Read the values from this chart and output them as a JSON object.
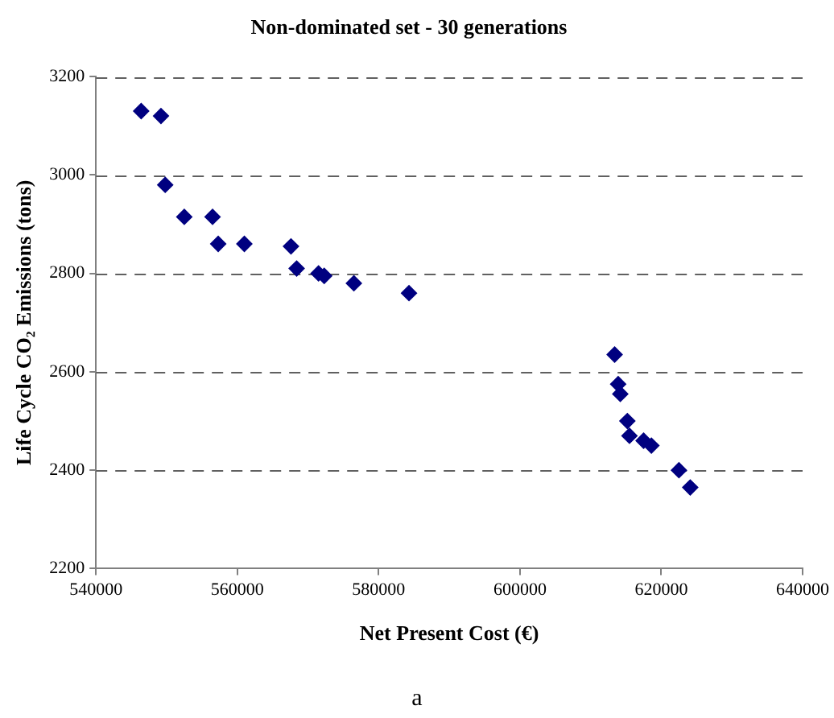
{
  "chart_data": {
    "type": "scatter",
    "title": "Non-dominated set - 30 generations",
    "xlabel": "Net Present Cost (€)",
    "ylabel": "Life Cycle CO₂ Emissions (tons)",
    "annotations": [
      "a"
    ],
    "series": [
      {
        "color": "#000080",
        "x": [
          546400,
          549200,
          549800,
          552500,
          556500,
          557300,
          561000,
          567600,
          568400,
          571500,
          572300,
          576500,
          584300,
          613400,
          613900,
          614200,
          615200,
          615500,
          617500,
          618600,
          622500,
          624100
        ],
        "values": [
          3130,
          3120,
          2980,
          2915,
          2915,
          2860,
          2860,
          2855,
          2810,
          2800,
          2795,
          2780,
          2760,
          2635,
          2575,
          2555,
          2500,
          2470,
          2460,
          2450,
          2400,
          2365
        ]
      }
    ],
    "xlim": [
      540000,
      640000
    ],
    "xticks": [
      540000,
      560000,
      580000,
      600000,
      620000,
      640000
    ],
    "ylim": [
      2200,
      3200
    ],
    "yticks": [
      2200,
      2400,
      2600,
      2800,
      3000,
      3200
    ],
    "grid": "y",
    "legend": false,
    "marker": "diamond"
  }
}
